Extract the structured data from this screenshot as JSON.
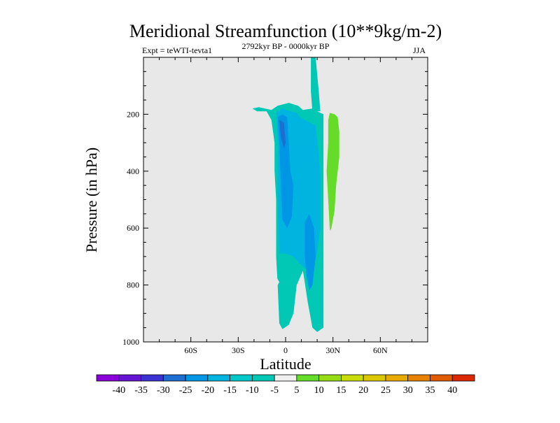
{
  "chart_data": {
    "type": "contour",
    "title": "Meridional Streamfunction (10**9kg/m-2)",
    "expt_label": "Expt = teWTI-tevta1",
    "period_label": "2792kyr BP - 0000kyr BP",
    "season_label": "JJA",
    "xlabel": "Latitude",
    "ylabel": "Pressure (in hPa)",
    "xlim": [
      -90,
      90
    ],
    "ylim": [
      1000,
      0
    ],
    "xticks": [
      {
        "value": -60,
        "label": "60S"
      },
      {
        "value": -30,
        "label": "30S"
      },
      {
        "value": 0,
        "label": "0"
      },
      {
        "value": 30,
        "label": "30N"
      },
      {
        "value": 60,
        "label": "60N"
      }
    ],
    "yticks": [
      {
        "value": 200,
        "label": "200"
      },
      {
        "value": 400,
        "label": "400"
      },
      {
        "value": 600,
        "label": "600"
      },
      {
        "value": 800,
        "label": "800"
      },
      {
        "value": 1000,
        "label": "1000"
      }
    ],
    "background_color": "#e8e8e8",
    "regions": [
      {
        "name": "cell-minus10",
        "level": -10,
        "color": "#00c8b4",
        "points": [
          [
            -21,
            180
          ],
          [
            -17,
            175
          ],
          [
            -9,
            185
          ],
          [
            -5,
            170
          ],
          [
            2,
            160
          ],
          [
            8,
            170
          ],
          [
            11,
            185
          ],
          [
            17,
            180
          ],
          [
            20,
            190
          ],
          [
            24,
            200
          ],
          [
            24,
            950
          ],
          [
            20,
            965
          ],
          [
            17,
            950
          ],
          [
            14,
            860
          ],
          [
            11,
            750
          ],
          [
            7,
            800
          ],
          [
            5,
            900
          ],
          [
            2,
            940
          ],
          [
            -2,
            955
          ],
          [
            -4,
            935
          ],
          [
            -5,
            800
          ],
          [
            -6,
            700
          ],
          [
            -6,
            500
          ],
          [
            -7,
            400
          ],
          [
            -7,
            300
          ],
          [
            -9,
            220
          ],
          [
            -12,
            190
          ],
          [
            -18,
            190
          ]
        ]
      },
      {
        "name": "jet-minus10",
        "level": -10,
        "color": "#00c8b4",
        "points": [
          [
            16,
            0
          ],
          [
            19,
            0
          ],
          [
            21,
            120
          ],
          [
            22,
            190
          ],
          [
            17,
            190
          ],
          [
            16,
            120
          ]
        ]
      },
      {
        "name": "cell-minus15",
        "level": -15,
        "color": "#00b4e0",
        "points": [
          [
            -6,
            195
          ],
          [
            -2,
            180
          ],
          [
            3,
            190
          ],
          [
            7,
            195
          ],
          [
            9,
            210
          ],
          [
            12,
            220
          ],
          [
            19,
            240
          ],
          [
            22,
            400
          ],
          [
            22,
            600
          ],
          [
            20,
            680
          ],
          [
            18,
            740
          ],
          [
            12,
            740
          ],
          [
            8,
            720
          ],
          [
            5,
            700
          ],
          [
            0,
            690
          ],
          [
            -4,
            690
          ],
          [
            -5,
            500
          ],
          [
            -5,
            300
          ]
        ]
      },
      {
        "name": "cell-minus20",
        "level": -20,
        "color": "#0096e6",
        "points": [
          [
            -5,
            210
          ],
          [
            -2,
            200
          ],
          [
            1,
            210
          ],
          [
            2,
            300
          ],
          [
            3,
            400
          ],
          [
            5,
            450
          ],
          [
            4,
            560
          ],
          [
            1,
            600
          ],
          [
            -2,
            570
          ],
          [
            -3,
            450
          ],
          [
            -4,
            300
          ]
        ]
      },
      {
        "name": "cell-minus20-low",
        "level": -20,
        "color": "#0096e6",
        "points": [
          [
            12,
            580
          ],
          [
            15,
            550
          ],
          [
            18,
            600
          ],
          [
            19,
            700
          ],
          [
            17,
            800
          ],
          [
            15,
            820
          ],
          [
            13,
            760
          ],
          [
            12,
            680
          ]
        ]
      },
      {
        "name": "cell-minus25",
        "level": -25,
        "color": "#1e6ed2",
        "points": [
          [
            -4,
            220
          ],
          [
            -1,
            230
          ],
          [
            0,
            300
          ],
          [
            -1,
            320
          ],
          [
            -3,
            280
          ]
        ]
      },
      {
        "name": "cell-plus5",
        "level": 5,
        "color": "#64dc28",
        "points": [
          [
            28,
            195
          ],
          [
            31,
            200
          ],
          [
            33,
            210
          ],
          [
            34,
            260
          ],
          [
            34,
            350
          ],
          [
            32,
            450
          ],
          [
            31,
            540
          ],
          [
            29,
            600
          ],
          [
            28,
            610
          ],
          [
            27,
            500
          ],
          [
            26,
            400
          ],
          [
            27,
            300
          ],
          [
            27,
            220
          ]
        ]
      },
      {
        "name": "hole-minus5",
        "level": -5,
        "color": "#e8e8e8",
        "points": [
          [
            -6,
            770
          ],
          [
            -4,
            790
          ],
          [
            -6,
            810
          ],
          [
            -8,
            790
          ]
        ]
      }
    ],
    "colorbar": {
      "colors": [
        "#8a00d8",
        "#6414d2",
        "#3c32d2",
        "#1e6ed2",
        "#0096e6",
        "#00b4e0",
        "#00c8c8",
        "#00c8b4",
        "#f0f0f0",
        "#64dc28",
        "#96dc14",
        "#c8dc0a",
        "#dcc800",
        "#e6aa00",
        "#e68200",
        "#e05a00",
        "#dc2800"
      ],
      "labels": [
        "-40",
        "-35",
        "-30",
        "-25",
        "-20",
        "-15",
        "-10",
        "-5",
        "5",
        "10",
        "15",
        "20",
        "25",
        "30",
        "35",
        "40"
      ]
    }
  }
}
